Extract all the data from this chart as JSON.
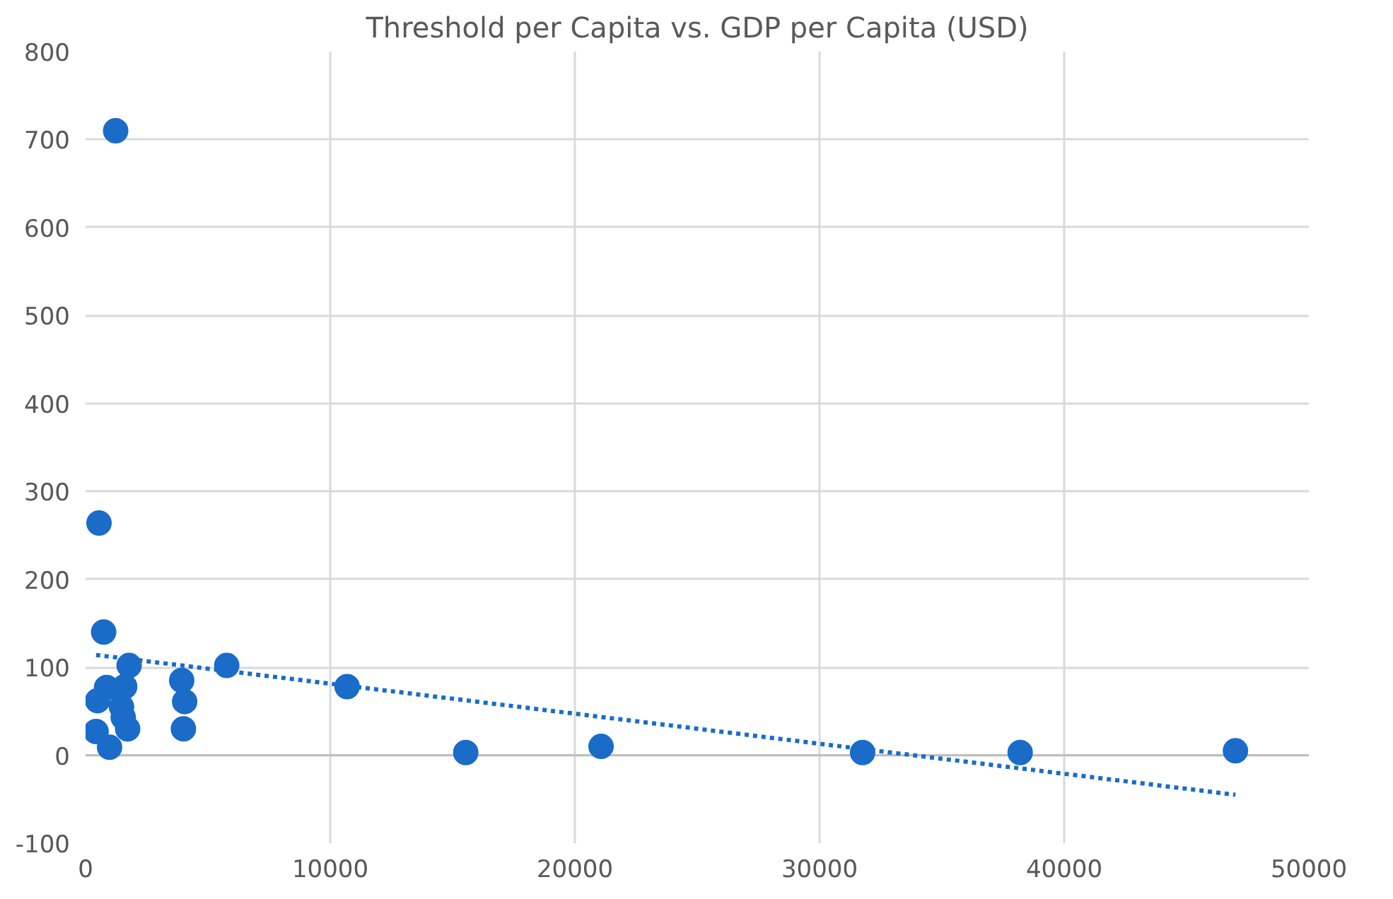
{
  "chart_data": {
    "type": "scatter",
    "title": "Threshold per Capita vs. GDP per Capita (USD)",
    "xlim": [
      0,
      50000
    ],
    "xticks": [
      0,
      10000,
      20000,
      30000,
      40000,
      50000
    ],
    "ylim": [
      -100,
      800
    ],
    "yticks": [
      -100,
      0,
      100,
      200,
      300,
      400,
      500,
      600,
      700,
      800
    ],
    "grid": true,
    "marker": "circle",
    "series": [
      {
        "color": "#1a6cc8",
        "x": [
          1230,
          550,
          740,
          1780,
          5770,
          10690,
          3930,
          4050,
          4000,
          860,
          490,
          1600,
          1470,
          1540,
          1720,
          430,
          980,
          15540,
          21070,
          31760,
          38200,
          47000
        ],
        "values": [
          710,
          264,
          140,
          102,
          102,
          78,
          85,
          61,
          30,
          77,
          62,
          78,
          55,
          43,
          30,
          27,
          9,
          3,
          10,
          3,
          3,
          5
        ]
      },
      {
        "type": "line",
        "color": "#1a6cc8",
        "marker": "none",
        "line_style": "dotted",
        "x": [
          430,
          47000
        ],
        "values": [
          114,
          -45
        ]
      }
    ]
  }
}
